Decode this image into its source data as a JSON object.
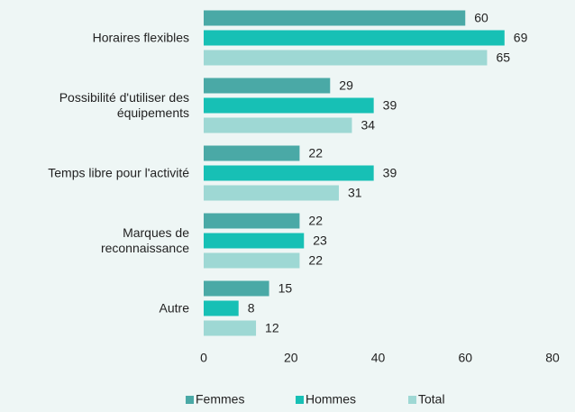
{
  "chart_data": {
    "type": "barh",
    "categories": [
      "Horaires flexibles",
      "Possibilité d'utiliser des\néquipements",
      "Temps libre pour l'activité",
      "Marques de\nreconnaissance",
      "Autre"
    ],
    "series": [
      {
        "name": "Femmes",
        "color": "#4aa9a6",
        "values": [
          60,
          29,
          22,
          22,
          15
        ]
      },
      {
        "name": "Hommes",
        "color": "#17c0b5",
        "values": [
          69,
          39,
          39,
          23,
          8
        ]
      },
      {
        "name": "Total",
        "color": "#9ed8d4",
        "values": [
          65,
          34,
          31,
          22,
          12
        ]
      }
    ],
    "xlim": [
      0,
      80
    ],
    "xticks": [
      0,
      20,
      40,
      60,
      80
    ],
    "grid": false,
    "legend": "bottom"
  }
}
